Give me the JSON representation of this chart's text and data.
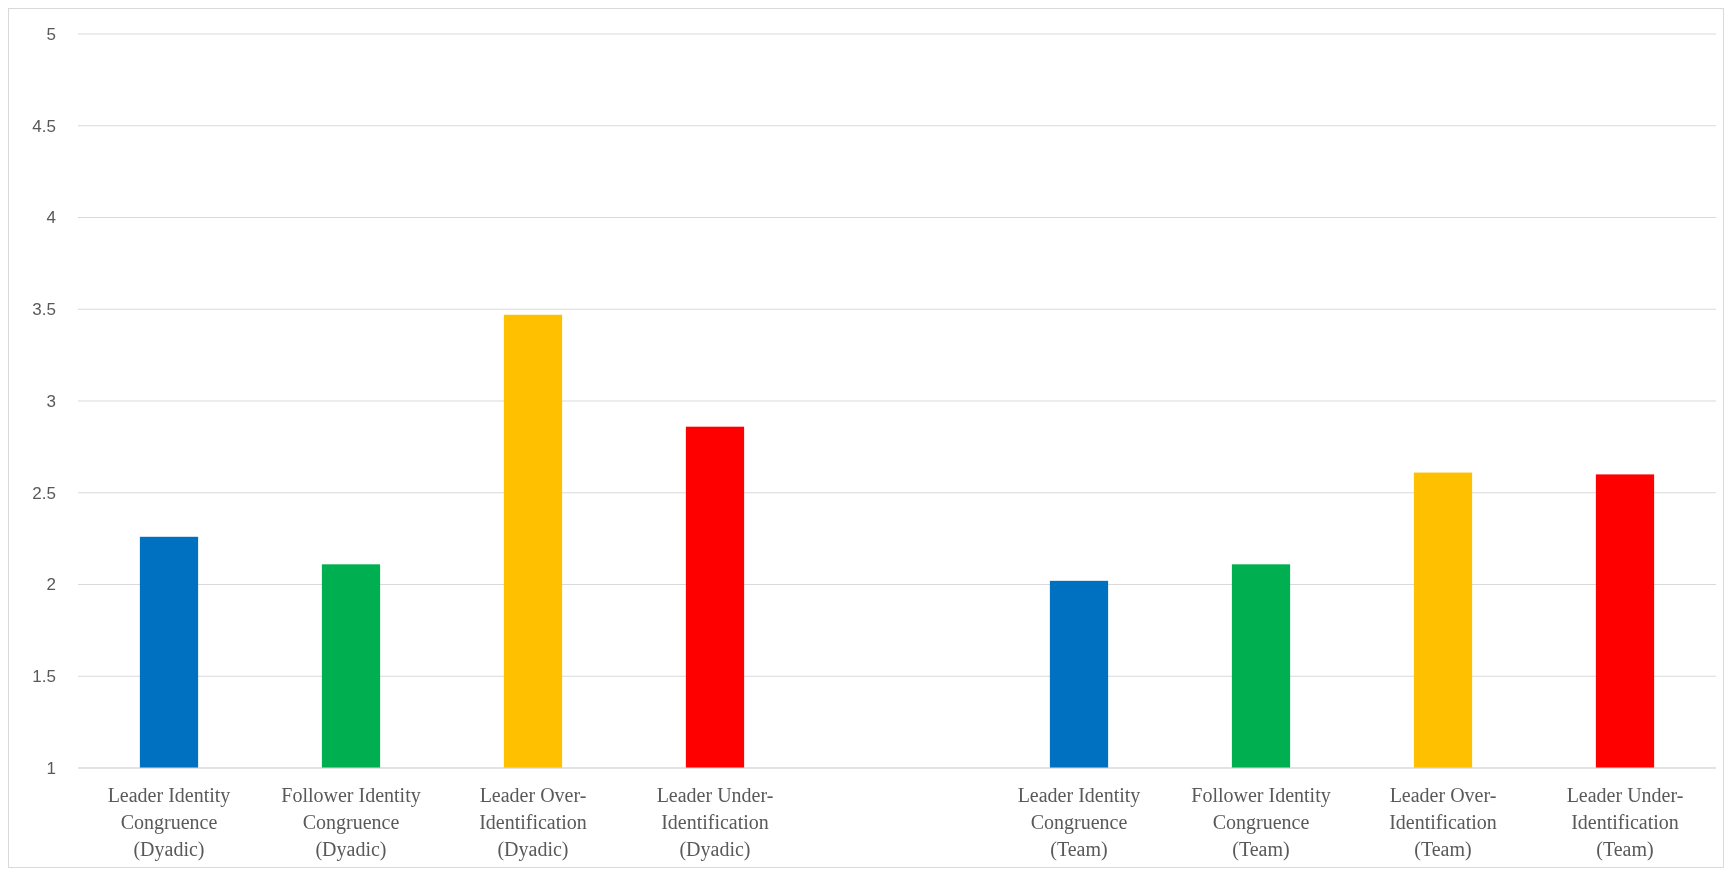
{
  "chart_data": {
    "type": "bar",
    "categories": [
      "Leader Identity Congruence (Dyadic)",
      "Follower Identity Congruence (Dyadic)",
      "Leader Over-Identification (Dyadic)",
      "Leader Under-Identification (Dyadic)",
      null,
      "Leader Identity Congruence (Team)",
      "Follower Identity Congruence (Team)",
      "Leader Over-Identification (Team)",
      "Leader Under-Identification (Team)"
    ],
    "values": [
      2.26,
      2.11,
      3.47,
      2.86,
      null,
      2.02,
      2.11,
      2.61,
      2.6
    ],
    "colors": [
      "#0070c0",
      "#00b050",
      "#ffc000",
      "#ff0000",
      null,
      "#0070c0",
      "#00b050",
      "#ffc000",
      "#ff0000"
    ],
    "ylim": [
      1,
      5
    ],
    "yticks": [
      1,
      1.5,
      2,
      2.5,
      3,
      3.5,
      4,
      4.5,
      5
    ],
    "grid": "y"
  }
}
